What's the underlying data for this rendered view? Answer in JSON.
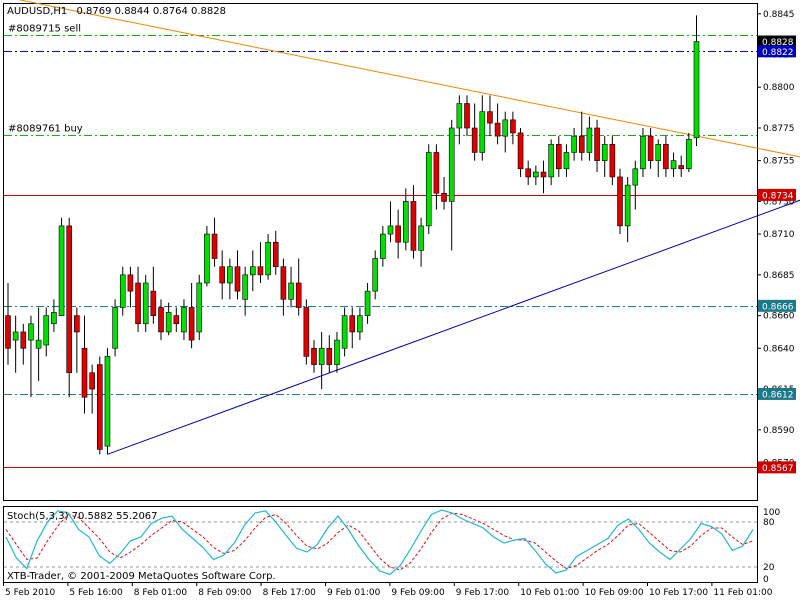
{
  "header": {
    "symbol": "AUDUSD,H1",
    "ohlc": "0.8769 0.8844 0.8764 0.8828"
  },
  "orders": [
    {
      "label": "#8089715 sell",
      "price": 0.8832,
      "color": "#22aa22"
    },
    {
      "label": "#8089761 buy",
      "price": 0.87705,
      "color": "#22aa22"
    }
  ],
  "copyright": "XTB-Trader, © 2001-2009 MetaQuotes Software Corp.",
  "stoch": {
    "label": "Stoch(5,3,3) 70.5882 55.2067",
    "ticks": [
      "100",
      "80",
      "20",
      "0"
    ],
    "k_color": "#20b8d8",
    "d_color": "#dd1111",
    "k": [
      60,
      32,
      18,
      55,
      80,
      95,
      92,
      70,
      60,
      35,
      25,
      38,
      55,
      60,
      78,
      85,
      88,
      70,
      58,
      46,
      30,
      36,
      52,
      76,
      92,
      95,
      80,
      62,
      45,
      40,
      50,
      72,
      88,
      70,
      48,
      30,
      15,
      10,
      22,
      44,
      68,
      90,
      96,
      92,
      84,
      78,
      72,
      60,
      52,
      56,
      58,
      42,
      24,
      12,
      16,
      34,
      42,
      50,
      58,
      76,
      84,
      70,
      52,
      40,
      30,
      44,
      58,
      78,
      74,
      64,
      42,
      48,
      70
    ],
    "d": [
      70,
      50,
      30,
      32,
      55,
      75,
      90,
      86,
      72,
      58,
      40,
      32,
      40,
      50,
      62,
      72,
      82,
      80,
      70,
      60,
      46,
      38,
      42,
      55,
      72,
      86,
      90,
      78,
      62,
      48,
      44,
      52,
      66,
      76,
      68,
      50,
      32,
      20,
      16,
      26,
      44,
      66,
      84,
      92,
      90,
      84,
      78,
      70,
      62,
      56,
      56,
      52,
      40,
      28,
      18,
      22,
      32,
      42,
      50,
      62,
      76,
      78,
      66,
      54,
      42,
      40,
      48,
      62,
      72,
      72,
      60,
      50,
      55
    ]
  },
  "chart_data": {
    "type": "candlestick",
    "symbol": "AUDUSD",
    "timeframe": "H1",
    "ylim": [
      0.8547,
      0.8851
    ],
    "y_ticks": [
      "0.8845",
      "0.8820",
      "0.8800",
      "0.8775",
      "0.8755",
      "0.8730",
      "0.8710",
      "0.8685",
      "0.8660",
      "0.8640",
      "0.8615",
      "0.8590",
      "0.8570"
    ],
    "x_labels": [
      "5 Feb 2010",
      "5 Feb 16:00",
      "8 Feb 01:00",
      "8 Feb 09:00",
      "8 Feb 17:00",
      "9 Feb 01:00",
      "9 Feb 09:00",
      "9 Feb 17:00",
      "10 Feb 01:00",
      "10 Feb 09:00",
      "10 Feb 17:00",
      "11 Feb 01:00"
    ],
    "price_lines": [
      {
        "price": 0.8828,
        "label": "0.8828",
        "style": "bid",
        "color": "#000000"
      },
      {
        "price": 0.8822,
        "label": "0.8822",
        "style": "dash-dot",
        "color": "#0000bb"
      },
      {
        "price": 0.8734,
        "label": "0.8734",
        "style": "solid",
        "color": "#cc0000"
      },
      {
        "price": 0.8666,
        "label": "0.8666",
        "style": "dash-dot",
        "color": "#1a7a8a"
      },
      {
        "price": 0.8612,
        "label": "0.8612",
        "style": "dash-dot",
        "color": "#1a7a8a"
      },
      {
        "price": 0.8567,
        "label": "0.8567",
        "style": "solid",
        "color": "#cc0000"
      }
    ],
    "trendlines": [
      {
        "name": "resistance",
        "color": "#ee8800",
        "from": [
          0,
          0.8855
        ],
        "to": [
          106,
          0.8755
        ]
      },
      {
        "name": "support",
        "color": "#0000aa",
        "from": [
          13,
          0.8575
        ],
        "to": [
          106,
          0.8735
        ]
      }
    ],
    "candles": [
      {
        "o": 0.866,
        "h": 0.868,
        "l": 0.863,
        "c": 0.864
      },
      {
        "o": 0.8645,
        "h": 0.866,
        "l": 0.8625,
        "c": 0.865
      },
      {
        "o": 0.865,
        "h": 0.8655,
        "l": 0.863,
        "c": 0.864
      },
      {
        "o": 0.8645,
        "h": 0.866,
        "l": 0.861,
        "c": 0.8655
      },
      {
        "o": 0.864,
        "h": 0.8665,
        "l": 0.862,
        "c": 0.8645
      },
      {
        "o": 0.8642,
        "h": 0.8665,
        "l": 0.8635,
        "c": 0.866
      },
      {
        "o": 0.8655,
        "h": 0.867,
        "l": 0.865,
        "c": 0.8662
      },
      {
        "o": 0.866,
        "h": 0.872,
        "l": 0.866,
        "c": 0.8715
      },
      {
        "o": 0.8715,
        "h": 0.872,
        "l": 0.861,
        "c": 0.8625
      },
      {
        "o": 0.866,
        "h": 0.8665,
        "l": 0.8625,
        "c": 0.865
      },
      {
        "o": 0.864,
        "h": 0.866,
        "l": 0.86,
        "c": 0.861
      },
      {
        "o": 0.8625,
        "h": 0.863,
        "l": 0.86,
        "c": 0.8615
      },
      {
        "o": 0.863,
        "h": 0.8635,
        "l": 0.8575,
        "c": 0.8578
      },
      {
        "o": 0.858,
        "h": 0.864,
        "l": 0.8575,
        "c": 0.8635
      },
      {
        "o": 0.864,
        "h": 0.867,
        "l": 0.8635,
        "c": 0.8665
      },
      {
        "o": 0.8665,
        "h": 0.869,
        "l": 0.866,
        "c": 0.8685
      },
      {
        "o": 0.8685,
        "h": 0.869,
        "l": 0.8665,
        "c": 0.8675
      },
      {
        "o": 0.868,
        "h": 0.869,
        "l": 0.865,
        "c": 0.8655
      },
      {
        "o": 0.8655,
        "h": 0.8685,
        "l": 0.865,
        "c": 0.868
      },
      {
        "o": 0.8675,
        "h": 0.869,
        "l": 0.8655,
        "c": 0.866
      },
      {
        "o": 0.8665,
        "h": 0.867,
        "l": 0.8645,
        "c": 0.865
      },
      {
        "o": 0.865,
        "h": 0.8668,
        "l": 0.8648,
        "c": 0.8662
      },
      {
        "o": 0.866,
        "h": 0.8665,
        "l": 0.865,
        "c": 0.8655
      },
      {
        "o": 0.865,
        "h": 0.867,
        "l": 0.8645,
        "c": 0.8665
      },
      {
        "o": 0.8665,
        "h": 0.868,
        "l": 0.864,
        "c": 0.8645
      },
      {
        "o": 0.865,
        "h": 0.8685,
        "l": 0.8645,
        "c": 0.868
      },
      {
        "o": 0.868,
        "h": 0.8715,
        "l": 0.8678,
        "c": 0.871
      },
      {
        "o": 0.871,
        "h": 0.872,
        "l": 0.869,
        "c": 0.8695
      },
      {
        "o": 0.869,
        "h": 0.87,
        "l": 0.867,
        "c": 0.868
      },
      {
        "o": 0.868,
        "h": 0.8695,
        "l": 0.867,
        "c": 0.869
      },
      {
        "o": 0.869,
        "h": 0.87,
        "l": 0.867,
        "c": 0.8675
      },
      {
        "o": 0.867,
        "h": 0.869,
        "l": 0.866,
        "c": 0.8685
      },
      {
        "o": 0.8685,
        "h": 0.87,
        "l": 0.8675,
        "c": 0.869
      },
      {
        "o": 0.869,
        "h": 0.8705,
        "l": 0.868,
        "c": 0.8685
      },
      {
        "o": 0.8685,
        "h": 0.871,
        "l": 0.8682,
        "c": 0.8705
      },
      {
        "o": 0.8705,
        "h": 0.8712,
        "l": 0.8685,
        "c": 0.869
      },
      {
        "o": 0.869,
        "h": 0.8695,
        "l": 0.866,
        "c": 0.867
      },
      {
        "o": 0.867,
        "h": 0.869,
        "l": 0.8665,
        "c": 0.868
      },
      {
        "o": 0.868,
        "h": 0.8695,
        "l": 0.866,
        "c": 0.8665
      },
      {
        "o": 0.8665,
        "h": 0.867,
        "l": 0.863,
        "c": 0.8635
      },
      {
        "o": 0.864,
        "h": 0.8645,
        "l": 0.8625,
        "c": 0.863
      },
      {
        "o": 0.863,
        "h": 0.865,
        "l": 0.8615,
        "c": 0.864
      },
      {
        "o": 0.864,
        "h": 0.8648,
        "l": 0.8625,
        "c": 0.863
      },
      {
        "o": 0.863,
        "h": 0.865,
        "l": 0.8625,
        "c": 0.8645
      },
      {
        "o": 0.864,
        "h": 0.8665,
        "l": 0.8635,
        "c": 0.866
      },
      {
        "o": 0.866,
        "h": 0.8665,
        "l": 0.864,
        "c": 0.865
      },
      {
        "o": 0.865,
        "h": 0.8665,
        "l": 0.8645,
        "c": 0.866
      },
      {
        "o": 0.866,
        "h": 0.868,
        "l": 0.8655,
        "c": 0.8675
      },
      {
        "o": 0.8675,
        "h": 0.87,
        "l": 0.867,
        "c": 0.8695
      },
      {
        "o": 0.8695,
        "h": 0.8715,
        "l": 0.869,
        "c": 0.871
      },
      {
        "o": 0.871,
        "h": 0.873,
        "l": 0.8705,
        "c": 0.8715
      },
      {
        "o": 0.8715,
        "h": 0.8725,
        "l": 0.8695,
        "c": 0.8705
      },
      {
        "o": 0.8705,
        "h": 0.8738,
        "l": 0.87,
        "c": 0.873
      },
      {
        "o": 0.873,
        "h": 0.874,
        "l": 0.8695,
        "c": 0.87
      },
      {
        "o": 0.87,
        "h": 0.872,
        "l": 0.869,
        "c": 0.8715
      },
      {
        "o": 0.8715,
        "h": 0.8765,
        "l": 0.871,
        "c": 0.876
      },
      {
        "o": 0.876,
        "h": 0.8765,
        "l": 0.8725,
        "c": 0.8735
      },
      {
        "o": 0.8735,
        "h": 0.8745,
        "l": 0.8725,
        "c": 0.873
      },
      {
        "o": 0.873,
        "h": 0.878,
        "l": 0.87,
        "c": 0.8775
      },
      {
        "o": 0.8775,
        "h": 0.8795,
        "l": 0.8765,
        "c": 0.879
      },
      {
        "o": 0.879,
        "h": 0.8795,
        "l": 0.877,
        "c": 0.8775
      },
      {
        "o": 0.8775,
        "h": 0.879,
        "l": 0.8755,
        "c": 0.876
      },
      {
        "o": 0.876,
        "h": 0.8795,
        "l": 0.8755,
        "c": 0.8785
      },
      {
        "o": 0.8785,
        "h": 0.8795,
        "l": 0.877,
        "c": 0.8778
      },
      {
        "o": 0.8778,
        "h": 0.879,
        "l": 0.8765,
        "c": 0.877
      },
      {
        "o": 0.877,
        "h": 0.8785,
        "l": 0.876,
        "c": 0.878
      },
      {
        "o": 0.878,
        "h": 0.8785,
        "l": 0.8765,
        "c": 0.8772
      },
      {
        "o": 0.8772,
        "h": 0.8775,
        "l": 0.8745,
        "c": 0.875
      },
      {
        "o": 0.875,
        "h": 0.8755,
        "l": 0.874,
        "c": 0.8745
      },
      {
        "o": 0.8745,
        "h": 0.8752,
        "l": 0.874,
        "c": 0.8748
      },
      {
        "o": 0.8748,
        "h": 0.8755,
        "l": 0.8735,
        "c": 0.8745
      },
      {
        "o": 0.8745,
        "h": 0.8768,
        "l": 0.874,
        "c": 0.8765
      },
      {
        "o": 0.8765,
        "h": 0.877,
        "l": 0.8745,
        "c": 0.875
      },
      {
        "o": 0.875,
        "h": 0.8765,
        "l": 0.8745,
        "c": 0.876
      },
      {
        "o": 0.876,
        "h": 0.8775,
        "l": 0.8755,
        "c": 0.877
      },
      {
        "o": 0.877,
        "h": 0.8785,
        "l": 0.8755,
        "c": 0.876
      },
      {
        "o": 0.876,
        "h": 0.8782,
        "l": 0.8755,
        "c": 0.8775
      },
      {
        "o": 0.8775,
        "h": 0.878,
        "l": 0.8748,
        "c": 0.8755
      },
      {
        "o": 0.8755,
        "h": 0.877,
        "l": 0.8745,
        "c": 0.8765
      },
      {
        "o": 0.8765,
        "h": 0.877,
        "l": 0.874,
        "c": 0.8745
      },
      {
        "o": 0.8745,
        "h": 0.875,
        "l": 0.871,
        "c": 0.8715
      },
      {
        "o": 0.8715,
        "h": 0.8745,
        "l": 0.8705,
        "c": 0.874
      },
      {
        "o": 0.874,
        "h": 0.8755,
        "l": 0.8725,
        "c": 0.875
      },
      {
        "o": 0.875,
        "h": 0.8775,
        "l": 0.8745,
        "c": 0.877
      },
      {
        "o": 0.877,
        "h": 0.8775,
        "l": 0.875,
        "c": 0.8755
      },
      {
        "o": 0.8755,
        "h": 0.8768,
        "l": 0.8745,
        "c": 0.8765
      },
      {
        "o": 0.8765,
        "h": 0.877,
        "l": 0.8745,
        "c": 0.875
      },
      {
        "o": 0.875,
        "h": 0.876,
        "l": 0.8745,
        "c": 0.8755
      },
      {
        "o": 0.8752,
        "h": 0.8758,
        "l": 0.8745,
        "c": 0.875
      },
      {
        "o": 0.875,
        "h": 0.8772,
        "l": 0.8748,
        "c": 0.8768
      },
      {
        "o": 0.8769,
        "h": 0.8844,
        "l": 0.8764,
        "c": 0.8828
      }
    ]
  }
}
